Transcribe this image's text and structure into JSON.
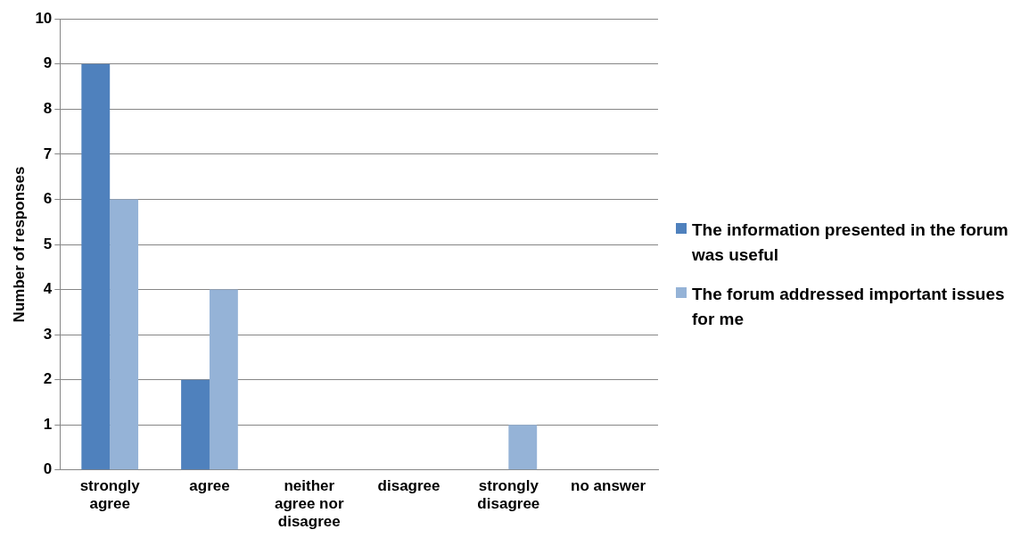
{
  "chart_data": {
    "type": "bar",
    "ylabel": "Number of responses",
    "categories": [
      "strongly agree",
      "agree",
      "neither agree nor disagree",
      "disagree",
      "strongly disagree",
      "no answer"
    ],
    "series": [
      {
        "name": "The information presented in the forum was useful",
        "color": "#4f81bd",
        "values": [
          9,
          2,
          0,
          0,
          0,
          0
        ]
      },
      {
        "name": "The forum addressed important issues for me",
        "color": "#95b3d7",
        "values": [
          6,
          4,
          0,
          0,
          1,
          0
        ]
      }
    ],
    "ylim": [
      0,
      10
    ],
    "yticks": [
      0,
      1,
      2,
      3,
      4,
      5,
      6,
      7,
      8,
      9,
      10
    ],
    "grid": "y",
    "legend": "right"
  }
}
